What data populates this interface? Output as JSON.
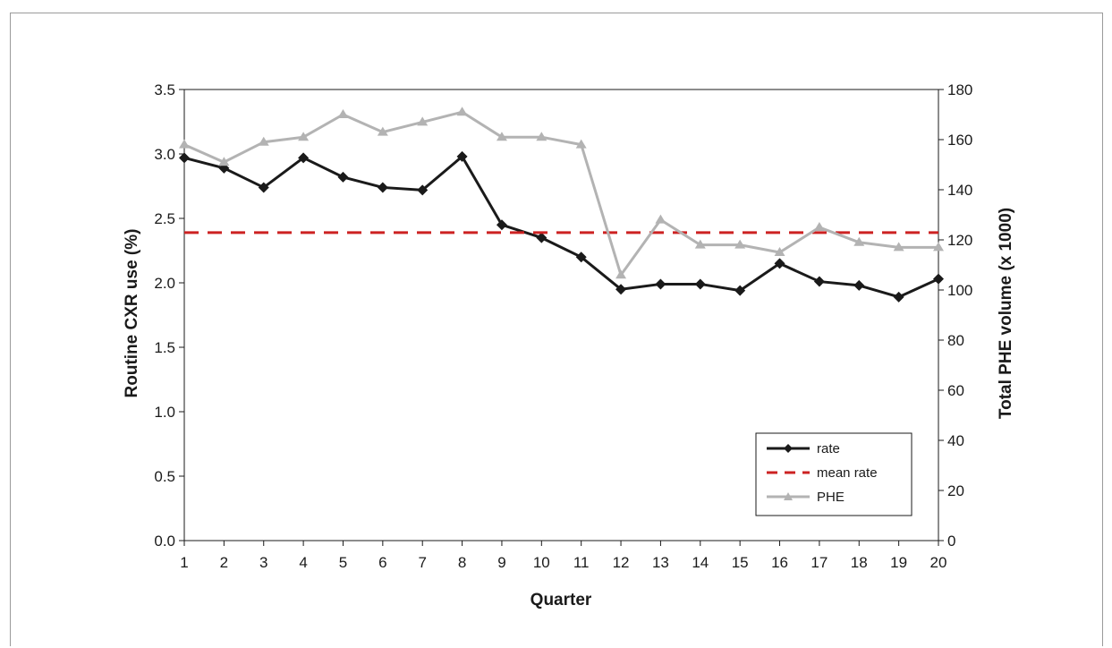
{
  "chart_data": {
    "type": "line",
    "title": "",
    "xlabel": "Quarter",
    "ylabel": "Routine CXR use (%)",
    "y2label": "Total PHE volume (x 1000)",
    "x": [
      1,
      2,
      3,
      4,
      5,
      6,
      7,
      8,
      9,
      10,
      11,
      12,
      13,
      14,
      15,
      16,
      17,
      18,
      19,
      20
    ],
    "x_tick_labels": [
      "1",
      "2",
      "3",
      "4",
      "5",
      "6",
      "7",
      "8",
      "9",
      "10",
      "11",
      "12",
      "13",
      "14",
      "15",
      "16",
      "17",
      "18",
      "19",
      "20"
    ],
    "ylim": [
      0,
      3.5
    ],
    "y_ticks": [
      "0.0",
      "0.5",
      "1.0",
      "1.5",
      "2.0",
      "2.5",
      "3.0",
      "3.5"
    ],
    "y2lim": [
      0,
      180
    ],
    "y2_ticks": [
      "0",
      "20",
      "40",
      "60",
      "80",
      "100",
      "120",
      "140",
      "160",
      "180"
    ],
    "grid": false,
    "legend_position": "bottom-right",
    "series": [
      {
        "name": "rate",
        "axis": "left",
        "marker": "diamond",
        "color": "#1a1a1a",
        "values": [
          2.97,
          2.89,
          2.74,
          2.97,
          2.82,
          2.74,
          2.72,
          2.98,
          2.45,
          2.35,
          2.2,
          1.95,
          1.99,
          1.99,
          1.94,
          2.15,
          2.01,
          1.98,
          1.89,
          2.03
        ]
      },
      {
        "name": "mean rate",
        "axis": "left",
        "style": "dashed",
        "color": "#cc2222",
        "values": [
          2.39,
          2.39,
          2.39,
          2.39,
          2.39,
          2.39,
          2.39,
          2.39,
          2.39,
          2.39,
          2.39,
          2.39,
          2.39,
          2.39,
          2.39,
          2.39,
          2.39,
          2.39,
          2.39,
          2.39
        ]
      },
      {
        "name": "PHE",
        "axis": "right",
        "marker": "triangle",
        "color": "#b3b3b3",
        "values": [
          158,
          151,
          159,
          161,
          170,
          163,
          167,
          171,
          161,
          161,
          158,
          106,
          128,
          118,
          118,
          115,
          125,
          119,
          117,
          117
        ]
      }
    ]
  }
}
